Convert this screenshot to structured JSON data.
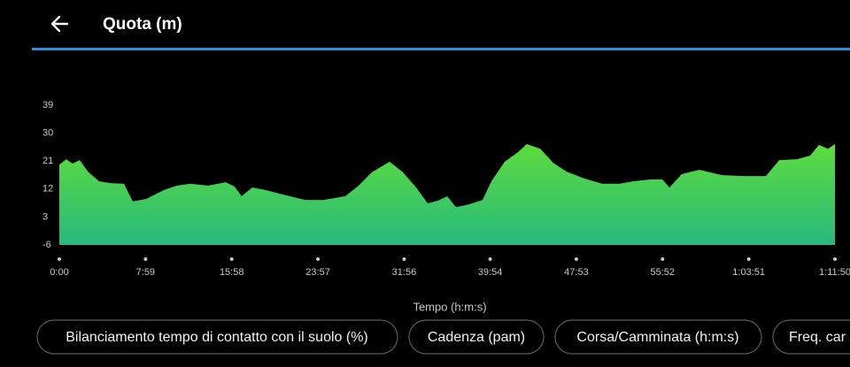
{
  "header": {
    "title": "Quota (m)"
  },
  "chart_data": {
    "type": "area",
    "x_label": "Tempo (h:m:s)",
    "x": [
      0,
      39,
      74,
      113,
      162,
      221,
      285,
      359,
      408,
      482,
      581,
      654,
      728,
      826,
      925,
      974,
      1013,
      1072,
      1146,
      1245,
      1368,
      1466,
      1589,
      1663,
      1737,
      1835,
      1909,
      1983,
      2047,
      2106,
      2155,
      2204,
      2278,
      2352,
      2401,
      2475,
      2549,
      2598,
      2672,
      2745,
      2819,
      2918,
      3016,
      3114,
      3188,
      3287,
      3351,
      3390,
      3459,
      3557,
      3680,
      3803,
      3926,
      4000,
      4098,
      4172,
      4221,
      4271,
      4310
    ],
    "values": [
      19.9,
      21.6,
      20.2,
      21.3,
      17.4,
      14.5,
      13.9,
      13.7,
      8,
      8.8,
      11.7,
      13.1,
      13.7,
      13.1,
      14.2,
      12.8,
      9.7,
      12.5,
      11.7,
      10.2,
      8.5,
      8.5,
      9.7,
      13.1,
      17.4,
      20.8,
      17.4,
      12.5,
      7.4,
      8.3,
      9.7,
      6.2,
      7.1,
      8.5,
      14.5,
      20.8,
      23.9,
      26.5,
      25,
      20.4,
      17.6,
      15.4,
      13.7,
      13.7,
      14.5,
      15.1,
      15.1,
      12.5,
      16.8,
      18.2,
      16.5,
      16.2,
      16.2,
      21.3,
      21.6,
      22.8,
      26.2,
      25,
      26.5
    ],
    "color": [
      "#5ddc3c",
      "#27b97e"
    ],
    "xlim": [
      0,
      4310
    ],
    "xticks": [
      {
        "value": 0,
        "label": "0:00"
      },
      {
        "value": 479,
        "label": "7:59"
      },
      {
        "value": 958,
        "label": "15:58"
      },
      {
        "value": 1437,
        "label": "23:57"
      },
      {
        "value": 1916,
        "label": "31:56"
      },
      {
        "value": 2394,
        "label": "39:54"
      },
      {
        "value": 2873,
        "label": "47:53"
      },
      {
        "value": 3352,
        "label": "55:52"
      },
      {
        "value": 3831,
        "label": "1:03:51"
      },
      {
        "value": 4310,
        "label": "1:11:50"
      }
    ],
    "ylim": [
      -6,
      39
    ],
    "yticks": [
      -6,
      3,
      12,
      21,
      30,
      39
    ],
    "grid": false
  },
  "chips": [
    "Bilanciamento tempo di contatto con il suolo (%)",
    "Cadenza (pam)",
    "Corsa/Camminata (h:m:s)",
    "Freq. car"
  ]
}
